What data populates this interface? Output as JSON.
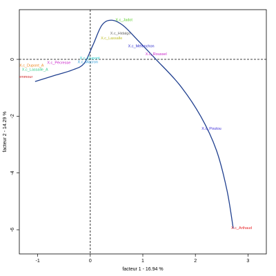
{
  "chart_data": {
    "type": "scatter",
    "xlabel": "facteur  1  - 16.94 %",
    "ylabel": "facteur  2 - 14.29 %",
    "xlim": [
      -1.35,
      3.35
    ],
    "ylim": [
      -6.85,
      1.75
    ],
    "xticks": [
      "-1",
      "0",
      "1",
      "2",
      "3"
    ],
    "yticks": [
      "-6",
      "-4",
      "-2",
      "0"
    ],
    "xtick_values": [
      -1,
      0,
      1,
      2,
      3
    ],
    "ytick_values": [
      -6,
      -4,
      -2,
      0
    ],
    "reference_lines": {
      "x": 0,
      "y": 0,
      "style": "dashed"
    },
    "curve": {
      "color": "#1f3f8f",
      "points": [
        [
          -1.05,
          -0.78
        ],
        [
          -0.65,
          -0.55
        ],
        [
          -0.35,
          -0.38
        ],
        [
          -0.12,
          -0.15
        ],
        [
          0.05,
          0.5
        ],
        [
          0.22,
          1.2
        ],
        [
          0.4,
          1.38
        ],
        [
          0.62,
          1.2
        ],
        [
          0.9,
          0.68
        ],
        [
          1.25,
          0.0
        ],
        [
          1.7,
          -0.9
        ],
        [
          2.1,
          -2.0
        ],
        [
          2.4,
          -3.2
        ],
        [
          2.6,
          -4.6
        ],
        [
          2.72,
          -5.95
        ]
      ]
    },
    "points": [
      {
        "label": "X.c_Arthaud",
        "x": 2.68,
        "y": -5.98,
        "color": "#e8262a"
      },
      {
        "label": "X.c_Poutou",
        "x": 2.12,
        "y": -2.48,
        "color": "#3b2bd8"
      },
      {
        "label": "X.c_Roussel",
        "x": 1.05,
        "y": 0.15,
        "color": "#c81ec8"
      },
      {
        "label": "X.c_Mélenchon",
        "x": 0.72,
        "y": 0.42,
        "color": "#2a2acc"
      },
      {
        "label": "X.c_Hidalgo",
        "x": 0.38,
        "y": 0.88,
        "color": "#6a6a6a"
      },
      {
        "label": "X.c_Jadot",
        "x": 0.48,
        "y": 1.35,
        "color": "#55cc22"
      },
      {
        "label": "X.c_Lassalle",
        "x": 0.2,
        "y": 0.7,
        "color": "#bcbc22"
      },
      {
        "label": "X.c_Dupont",
        "x": -0.2,
        "y": 0.0,
        "color": "#22c8c8"
      },
      {
        "label": "X.c_Macron",
        "x": -0.24,
        "y": -0.13,
        "color": "#2a9ad8"
      },
      {
        "label": "X.c_Pécresse",
        "x": -0.82,
        "y": -0.16,
        "color": "#c81ec8"
      },
      {
        "label": "X.c_Zemmour",
        "x": -1.55,
        "y": -0.65,
        "color": "#d02828"
      },
      {
        "label": "X.c_Dupont_A",
        "x": -1.35,
        "y": -0.26,
        "color": "#ee8822"
      },
      {
        "label": "X.c_Lassalle_A",
        "x": -1.3,
        "y": -0.4,
        "color": "#33cc88"
      }
    ]
  }
}
